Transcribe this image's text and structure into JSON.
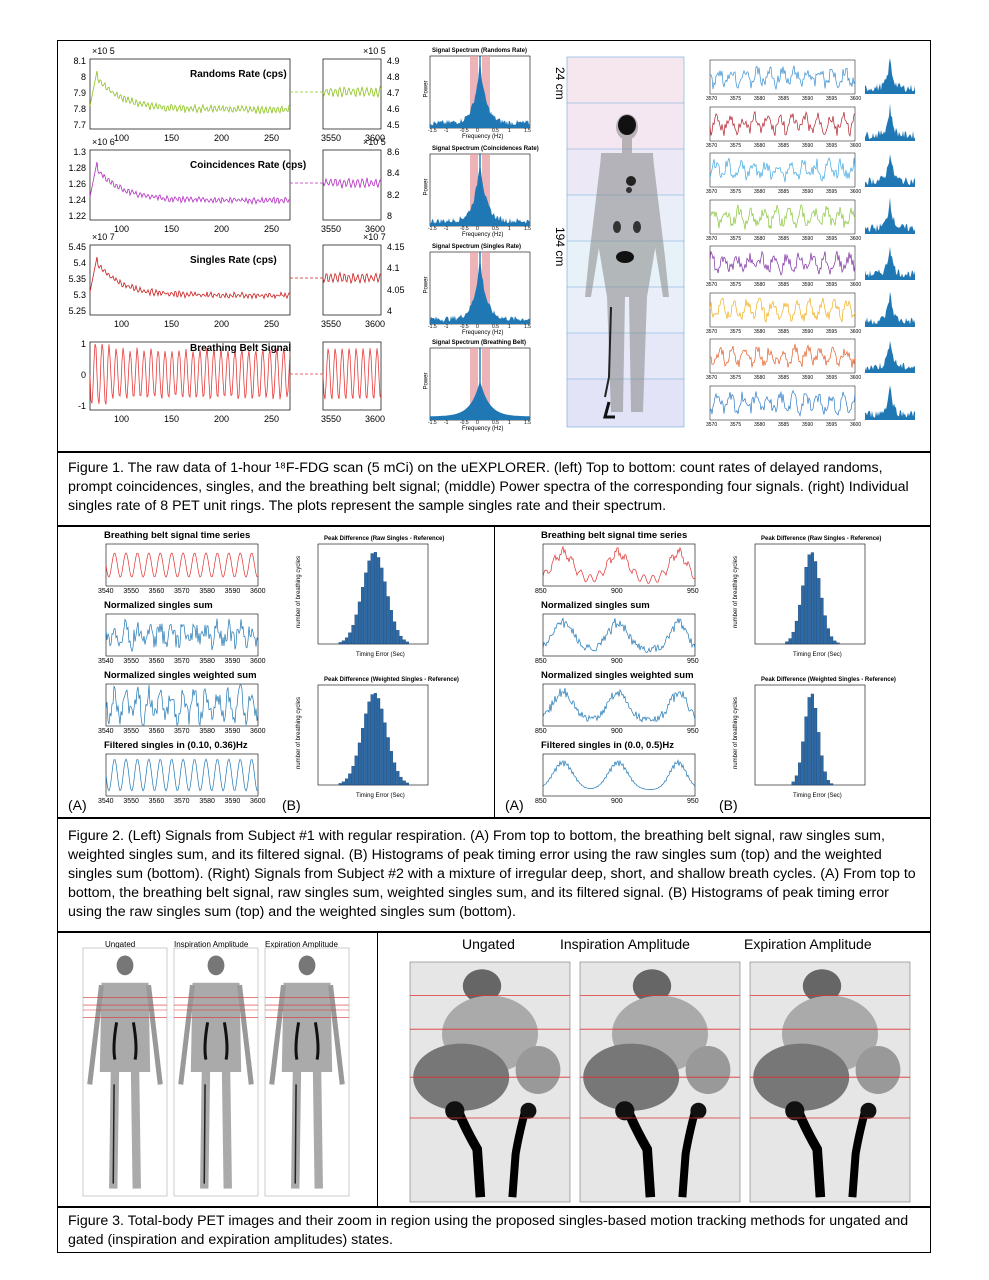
{
  "fig1": {
    "panels": [
      {
        "title": "Randoms Rate (cps)",
        "exp_left": "×10 5",
        "exp_right": "×10 5",
        "left_ticks": [
          "8.1",
          "8",
          "7.9",
          "7.8",
          "7.7"
        ],
        "right_ticks": [
          "4.9",
          "4.8",
          "4.7",
          "4.6",
          "4.5"
        ],
        "color": "#8dc21f"
      },
      {
        "title": "Coincidences Rate (cps)",
        "exp_left": "×10 6",
        "exp_right": "×10 5",
        "left_ticks": [
          "1.3",
          "1.28",
          "1.26",
          "1.24",
          "1.22"
        ],
        "right_ticks": [
          "8.6",
          "8.4",
          "8.2",
          "8"
        ],
        "color": "#b52ec2"
      },
      {
        "title": "Singles Rate (cps)",
        "exp_left": "×10 7",
        "exp_right": "×10 7",
        "left_ticks": [
          "5.45",
          "5.4",
          "5.35",
          "5.3",
          "5.25"
        ],
        "right_ticks": [
          "4.15",
          "4.1",
          "4.05",
          "4"
        ],
        "color": "#c8201f"
      },
      {
        "title": "Breathing Belt Signal",
        "exp_left": "",
        "exp_right": "",
        "left_ticks": [
          "1",
          "0",
          "-1"
        ],
        "right_ticks": [],
        "color": "#e83a3a"
      }
    ],
    "x_ticks_left": [
      "100",
      "150",
      "200",
      "250"
    ],
    "x_ticks_right": [
      "3550",
      "3600"
    ],
    "spectra": [
      {
        "title": "Signal Spectrum (Randoms Rate)",
        "ylabel": "Power",
        "xlabel": "Frequency (Hz)"
      },
      {
        "title": "Signal Spectrum (Coincidences Rate)",
        "ylabel": "Power",
        "xlabel": "Frequency (Hz)"
      },
      {
        "title": "Signal Spectrum (Singles Rate)",
        "ylabel": "Power",
        "xlabel": "Frequency (Hz)"
      },
      {
        "title": "Signal Spectrum (Breathing Belt)",
        "ylabel": "Power",
        "xlabel": "Frequency (Hz)"
      }
    ],
    "spec_x_ticks": [
      "-1.5",
      "-1",
      "-0.5",
      "0",
      "0.5",
      "1",
      "1.5"
    ],
    "dim_24": "24 cm",
    "dim_194": "194 cm",
    "ring_colors": [
      "#3a8fd1",
      "#b0202c",
      "#3fa9e0",
      "#8cc63f",
      "#7b2fa0",
      "#f0b020",
      "#e0602a",
      "#2f7bc8"
    ],
    "ring_ticks": [
      "3570",
      "3575",
      "3580",
      "3585",
      "3590",
      "3595",
      "3600"
    ],
    "caption": "Figure 1. The raw data of 1-hour ¹⁸F-FDG scan (5 mCi) on the uEXPLORER.  (left) Top to bottom: count rates of delayed randoms, prompt coincidences, singles, and the breathing belt signal; (middle) Power spectra of the corresponding four signals. (right) Individual singles rate of 8 PET unit rings. The plots represent the sample singles rate and their spectrum."
  },
  "fig2": {
    "left": {
      "titles": [
        "Breathing belt signal time series",
        "Normalized singles sum",
        "Normalized singles weighted sum",
        "Filtered singles in (0.10, 0.36)Hz"
      ],
      "x_ticks": [
        "3540",
        "3550",
        "3560",
        "3570",
        "3580",
        "3590",
        "3600"
      ],
      "hist_titles": [
        "Peak Difference (Raw Singles - Reference)",
        "Peak Difference (Weighted Singles - Reference)"
      ],
      "hist_xlabel": "Timing Error (Sec)",
      "hist_ylabel": "number of breathing cycles",
      "label_a": "(A)",
      "label_b": "(B)"
    },
    "right": {
      "titles": [
        "Breathing belt signal time series",
        "Normalized singles sum",
        "Normalized singles weighted sum",
        "Filtered singles in (0.0, 0.5)Hz"
      ],
      "x_ticks": [
        "850",
        "900",
        "950"
      ],
      "hist_titles": [
        "Peak Difference (Raw Singles - Reference)",
        "Peak Difference (Weighted Singles - Reference)"
      ],
      "hist_xlabel": "Timing Error (Sec)",
      "hist_ylabel": "number of breathing cycles",
      "label_a": "(A)",
      "label_b": "(B)"
    },
    "caption": "Figure 2. (Left) Signals from Subject #1 with regular respiration. (A) From top to bottom, the breathing belt signal, raw singles sum, weighted singles sum, and its filtered signal. (B) Histograms of peak timing error using the raw singles sum (top) and the weighted singles sum (bottom). (Right) Signals from Subject #2 with a mixture of irregular deep, short, and shallow breath cycles. (A) From top to bottom, the breathing belt signal, raw singles sum, weighted singles sum, and its filtered signal. (B) Histograms of peak timing error using the raw singles sum (top) and the weighted singles sum (bottom)."
  },
  "fig3": {
    "small_labels": [
      "Ungated",
      "Inspiration Amplitude",
      "Expiration Amplitude"
    ],
    "big_labels": [
      "Ungated",
      "Inspiration Amplitude",
      "Expiration Amplitude"
    ],
    "caption": "Figure 3. Total-body PET images and their zoom in region using the proposed singles-based motion tracking methods for ungated and gated (inspiration and expiration amplitudes) states."
  }
}
